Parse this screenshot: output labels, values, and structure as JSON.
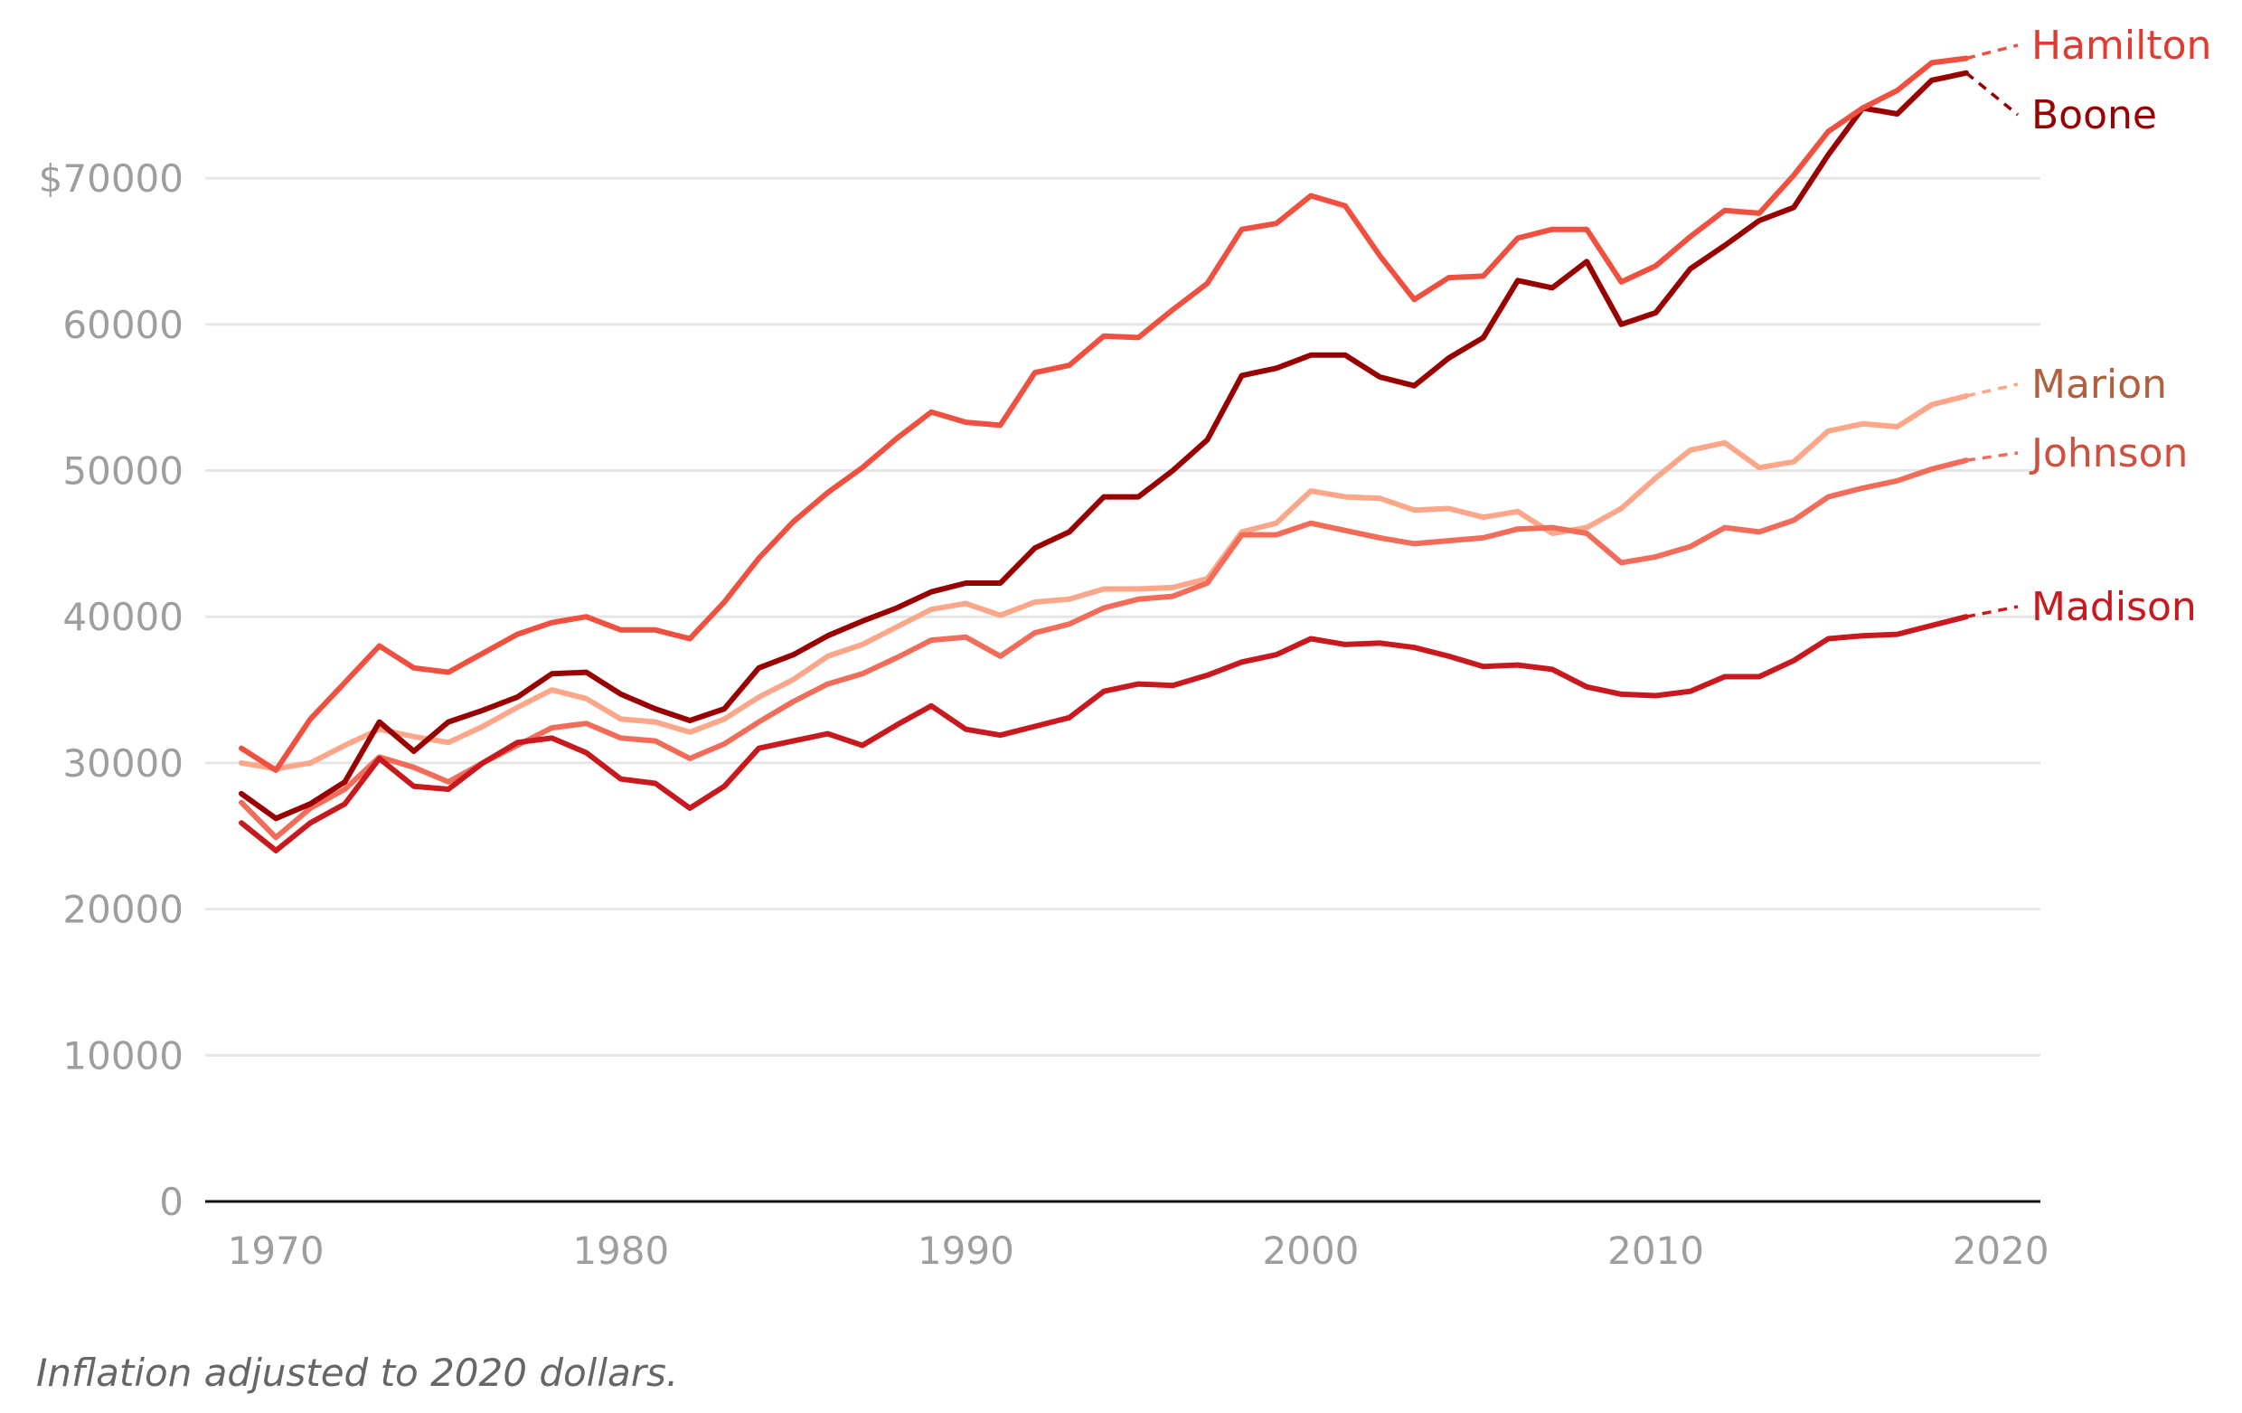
{
  "chart_data": {
    "type": "line",
    "title": "",
    "xlabel": "",
    "ylabel": "",
    "xlim": [
      1969,
      2020
    ],
    "ylim": [
      0,
      75000
    ],
    "grid": true,
    "x_ticks": [
      "1970",
      "1980",
      "1990",
      "2000",
      "2010",
      "2020"
    ],
    "y_ticks": [
      "0",
      "10000",
      "20000",
      "30000",
      "40000",
      "50000",
      "60000",
      "$70000"
    ],
    "legend": "direct labels at right end",
    "note": "Inflation adjusted to 2020 dollars.",
    "x": [
      1969,
      1970,
      1971,
      1972,
      1973,
      1974,
      1975,
      1976,
      1977,
      1978,
      1979,
      1980,
      1981,
      1982,
      1983,
      1984,
      1985,
      1986,
      1987,
      1988,
      1989,
      1990,
      1991,
      1992,
      1993,
      1994,
      1995,
      1996,
      1997,
      1998,
      1999,
      2000,
      2001,
      2002,
      2003,
      2004,
      2005,
      2006,
      2007,
      2008,
      2009,
      2010,
      2011,
      2012,
      2013,
      2014,
      2015,
      2016,
      2017,
      2018,
      2019
    ],
    "series": [
      {
        "name": "Marion",
        "color": "#fca68a",
        "label_color": "#b0603f",
        "values": [
          30000,
          29600,
          30000,
          31200,
          32300,
          31800,
          31400,
          32500,
          33800,
          35000,
          34400,
          33000,
          32800,
          32100,
          33000,
          34500,
          35700,
          37300,
          38100,
          39300,
          40500,
          40900,
          40100,
          41000,
          41200,
          41900,
          41900,
          42000,
          42600,
          45800,
          46400,
          48600,
          48200,
          48100,
          47300,
          47400,
          46800,
          47200,
          45700,
          46100,
          47400,
          49500,
          51400,
          51900,
          50200,
          50600,
          52700,
          53200,
          53000,
          54500,
          55100
        ]
      },
      {
        "name": "Johnson",
        "color": "#f26c5a",
        "label_color": "#d0503d",
        "values": [
          27300,
          24900,
          26900,
          28200,
          30400,
          29700,
          28700,
          30000,
          31200,
          32400,
          32700,
          31700,
          31500,
          30300,
          31300,
          32800,
          34200,
          35400,
          36100,
          37200,
          38400,
          38600,
          37300,
          38900,
          39500,
          40600,
          41200,
          41400,
          42300,
          45600,
          45600,
          46400,
          45900,
          45400,
          45000,
          45200,
          45400,
          46000,
          46100,
          45700,
          43700,
          44100,
          44800,
          46100,
          45800,
          46600,
          48200,
          48800,
          49300,
          50100,
          50700
        ]
      },
      {
        "name": "Madison",
        "color": "#c8191e",
        "label_color": "#c8191e",
        "values": [
          25900,
          24000,
          25900,
          27200,
          30300,
          28400,
          28200,
          30000,
          31400,
          31700,
          30700,
          28900,
          28600,
          26900,
          28400,
          31000,
          31500,
          32000,
          31200,
          32600,
          33900,
          32300,
          31900,
          32500,
          33100,
          34900,
          35400,
          35300,
          36000,
          36900,
          37400,
          38500,
          38100,
          38200,
          37900,
          37300,
          36600,
          36700,
          36400,
          35200,
          34700,
          34600,
          34900,
          35900,
          35900,
          37000,
          38500,
          38700,
          38800,
          39400,
          40000
        ]
      },
      {
        "name": "Boone",
        "color": "#990000",
        "label_color": "#990000",
        "values": [
          27900,
          26200,
          27200,
          28700,
          32800,
          30800,
          32800,
          33600,
          34500,
          36100,
          36200,
          34700,
          33700,
          32900,
          33700,
          36500,
          37400,
          38700,
          39700,
          40600,
          41700,
          42300,
          42300,
          44700,
          45800,
          48200,
          48200,
          50000,
          52100,
          56500,
          57000,
          57900,
          57900,
          56400,
          55800,
          57700,
          59100,
          63000,
          62500,
          64300,
          60000,
          60800,
          63800,
          65400,
          67100,
          68000,
          71600,
          74800,
          74400,
          76700,
          77200
        ]
      },
      {
        "name": "Hamilton",
        "color": "#f0503f",
        "label_color": "#e03b33",
        "values": [
          31000,
          29500,
          33000,
          35500,
          38000,
          36500,
          36200,
          37500,
          38800,
          39600,
          40000,
          39100,
          39100,
          38500,
          41000,
          44000,
          46500,
          48500,
          50200,
          52200,
          54000,
          53300,
          53100,
          56700,
          57200,
          59200,
          59100,
          61000,
          62800,
          66500,
          66900,
          68800,
          68100,
          64700,
          61700,
          63200,
          63300,
          65900,
          66500,
          66500,
          62900,
          64000,
          66000,
          67800,
          67600,
          70200,
          73200,
          74800,
          76000,
          77900,
          78200
        ]
      }
    ]
  }
}
